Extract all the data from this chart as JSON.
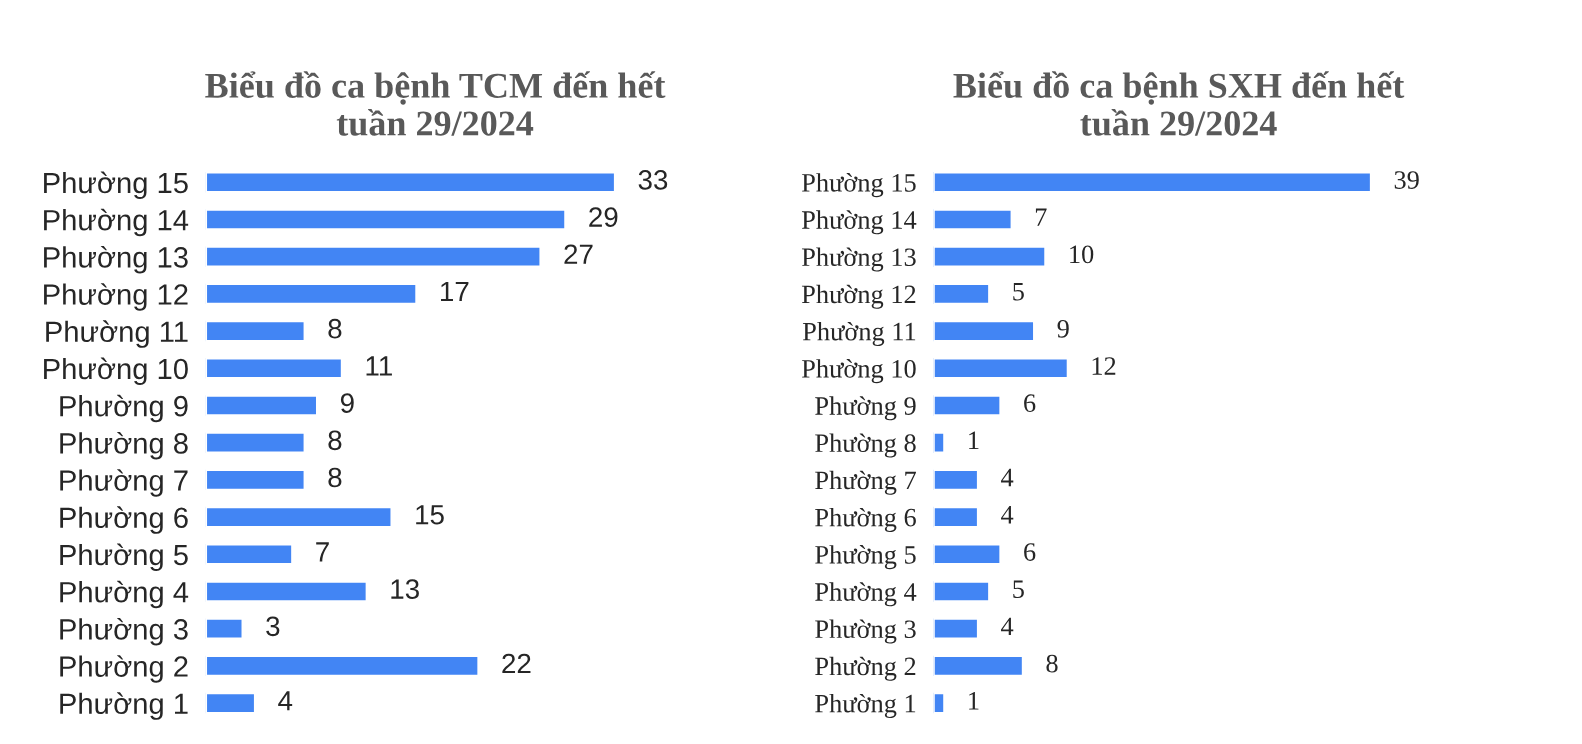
{
  "chart_data": [
    {
      "type": "bar",
      "orientation": "horizontal",
      "title": "Biểu đồ ca bệnh TCM đến hết\ntuần 29/2024",
      "categories": [
        "Phường 15",
        "Phường 14",
        "Phường 13",
        "Phường 12",
        "Phường 11",
        "Phường 10",
        "Phường 9",
        "Phường 8",
        "Phường 7",
        "Phường 6",
        "Phường 5",
        "Phường 4",
        "Phường 3",
        "Phường 2",
        "Phường 1"
      ],
      "values": [
        33,
        29,
        27,
        17,
        8,
        11,
        9,
        8,
        8,
        15,
        7,
        13,
        3,
        22,
        4
      ],
      "color": "#4285f4",
      "data_labels": true,
      "grid": false,
      "legend": false
    },
    {
      "type": "bar",
      "orientation": "horizontal",
      "title": "Biểu đồ ca bệnh SXH đến hết\ntuần 29/2024",
      "categories": [
        "Phường 15",
        "Phường 14",
        "Phường 13",
        "Phường 12",
        "Phường 11",
        "Phường 10",
        "Phường 9",
        "Phường 8",
        "Phường 7",
        "Phường 6",
        "Phường 5",
        "Phường 4",
        "Phường 3",
        "Phường 2",
        "Phường 1"
      ],
      "values": [
        39,
        7,
        10,
        5,
        9,
        12,
        6,
        1,
        4,
        4,
        6,
        5,
        4,
        8,
        1
      ],
      "color": "#4285f4",
      "data_labels": true,
      "grid": false,
      "legend": false
    }
  ]
}
